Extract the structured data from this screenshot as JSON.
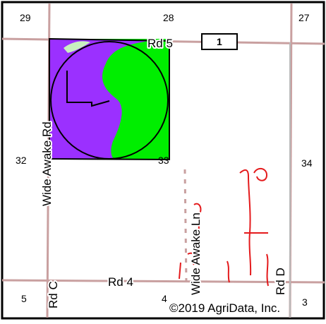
{
  "map": {
    "sections": {
      "nw": "29",
      "n": "28",
      "ne": "27",
      "w": "32",
      "center": "33",
      "e": "34",
      "sw": "5",
      "s": "4",
      "se": "3"
    },
    "roads": {
      "rd5": "Rd 5",
      "rd4": "Rd 4",
      "rdc": "Rd C",
      "rdd": "Rd D",
      "wide_awake_rd": "Wide Awake Rd",
      "wide_awake_ln": "Wide Awake Ln"
    },
    "field_marker": "1",
    "copyright": "©2019 AgriData, Inc.",
    "colors": {
      "soil_purple": "#9b30ff",
      "soil_green": "#00ee00",
      "soil_lightgreen": "#c8f0c0",
      "road": "#c9a0a0",
      "stream": "#e41a1c",
      "frame": "#000000"
    }
  }
}
